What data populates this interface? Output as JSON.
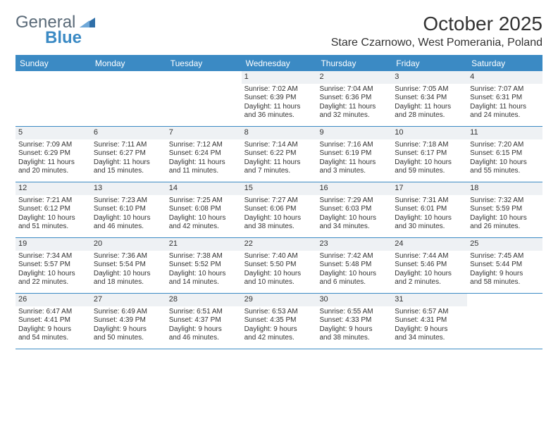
{
  "logo": {
    "text1": "General",
    "text2": "Blue",
    "tri_color": "#2f6fa8"
  },
  "title": "October 2025",
  "location": "Stare Czarnowo, West Pomerania, Poland",
  "header_bg": "#3b8ac4",
  "daybar_bg": "#eef1f4",
  "day_headers": [
    "Sunday",
    "Monday",
    "Tuesday",
    "Wednesday",
    "Thursday",
    "Friday",
    "Saturday"
  ],
  "weeks": [
    [
      {},
      {},
      {},
      {
        "n": "1",
        "sr": "Sunrise: 7:02 AM",
        "ss": "Sunset: 6:39 PM",
        "d1": "Daylight: 11 hours",
        "d2": "and 36 minutes."
      },
      {
        "n": "2",
        "sr": "Sunrise: 7:04 AM",
        "ss": "Sunset: 6:36 PM",
        "d1": "Daylight: 11 hours",
        "d2": "and 32 minutes."
      },
      {
        "n": "3",
        "sr": "Sunrise: 7:05 AM",
        "ss": "Sunset: 6:34 PM",
        "d1": "Daylight: 11 hours",
        "d2": "and 28 minutes."
      },
      {
        "n": "4",
        "sr": "Sunrise: 7:07 AM",
        "ss": "Sunset: 6:31 PM",
        "d1": "Daylight: 11 hours",
        "d2": "and 24 minutes."
      }
    ],
    [
      {
        "n": "5",
        "sr": "Sunrise: 7:09 AM",
        "ss": "Sunset: 6:29 PM",
        "d1": "Daylight: 11 hours",
        "d2": "and 20 minutes."
      },
      {
        "n": "6",
        "sr": "Sunrise: 7:11 AM",
        "ss": "Sunset: 6:27 PM",
        "d1": "Daylight: 11 hours",
        "d2": "and 15 minutes."
      },
      {
        "n": "7",
        "sr": "Sunrise: 7:12 AM",
        "ss": "Sunset: 6:24 PM",
        "d1": "Daylight: 11 hours",
        "d2": "and 11 minutes."
      },
      {
        "n": "8",
        "sr": "Sunrise: 7:14 AM",
        "ss": "Sunset: 6:22 PM",
        "d1": "Daylight: 11 hours",
        "d2": "and 7 minutes."
      },
      {
        "n": "9",
        "sr": "Sunrise: 7:16 AM",
        "ss": "Sunset: 6:19 PM",
        "d1": "Daylight: 11 hours",
        "d2": "and 3 minutes."
      },
      {
        "n": "10",
        "sr": "Sunrise: 7:18 AM",
        "ss": "Sunset: 6:17 PM",
        "d1": "Daylight: 10 hours",
        "d2": "and 59 minutes."
      },
      {
        "n": "11",
        "sr": "Sunrise: 7:20 AM",
        "ss": "Sunset: 6:15 PM",
        "d1": "Daylight: 10 hours",
        "d2": "and 55 minutes."
      }
    ],
    [
      {
        "n": "12",
        "sr": "Sunrise: 7:21 AM",
        "ss": "Sunset: 6:12 PM",
        "d1": "Daylight: 10 hours",
        "d2": "and 51 minutes."
      },
      {
        "n": "13",
        "sr": "Sunrise: 7:23 AM",
        "ss": "Sunset: 6:10 PM",
        "d1": "Daylight: 10 hours",
        "d2": "and 46 minutes."
      },
      {
        "n": "14",
        "sr": "Sunrise: 7:25 AM",
        "ss": "Sunset: 6:08 PM",
        "d1": "Daylight: 10 hours",
        "d2": "and 42 minutes."
      },
      {
        "n": "15",
        "sr": "Sunrise: 7:27 AM",
        "ss": "Sunset: 6:06 PM",
        "d1": "Daylight: 10 hours",
        "d2": "and 38 minutes."
      },
      {
        "n": "16",
        "sr": "Sunrise: 7:29 AM",
        "ss": "Sunset: 6:03 PM",
        "d1": "Daylight: 10 hours",
        "d2": "and 34 minutes."
      },
      {
        "n": "17",
        "sr": "Sunrise: 7:31 AM",
        "ss": "Sunset: 6:01 PM",
        "d1": "Daylight: 10 hours",
        "d2": "and 30 minutes."
      },
      {
        "n": "18",
        "sr": "Sunrise: 7:32 AM",
        "ss": "Sunset: 5:59 PM",
        "d1": "Daylight: 10 hours",
        "d2": "and 26 minutes."
      }
    ],
    [
      {
        "n": "19",
        "sr": "Sunrise: 7:34 AM",
        "ss": "Sunset: 5:57 PM",
        "d1": "Daylight: 10 hours",
        "d2": "and 22 minutes."
      },
      {
        "n": "20",
        "sr": "Sunrise: 7:36 AM",
        "ss": "Sunset: 5:54 PM",
        "d1": "Daylight: 10 hours",
        "d2": "and 18 minutes."
      },
      {
        "n": "21",
        "sr": "Sunrise: 7:38 AM",
        "ss": "Sunset: 5:52 PM",
        "d1": "Daylight: 10 hours",
        "d2": "and 14 minutes."
      },
      {
        "n": "22",
        "sr": "Sunrise: 7:40 AM",
        "ss": "Sunset: 5:50 PM",
        "d1": "Daylight: 10 hours",
        "d2": "and 10 minutes."
      },
      {
        "n": "23",
        "sr": "Sunrise: 7:42 AM",
        "ss": "Sunset: 5:48 PM",
        "d1": "Daylight: 10 hours",
        "d2": "and 6 minutes."
      },
      {
        "n": "24",
        "sr": "Sunrise: 7:44 AM",
        "ss": "Sunset: 5:46 PM",
        "d1": "Daylight: 10 hours",
        "d2": "and 2 minutes."
      },
      {
        "n": "25",
        "sr": "Sunrise: 7:45 AM",
        "ss": "Sunset: 5:44 PM",
        "d1": "Daylight: 9 hours",
        "d2": "and 58 minutes."
      }
    ],
    [
      {
        "n": "26",
        "sr": "Sunrise: 6:47 AM",
        "ss": "Sunset: 4:41 PM",
        "d1": "Daylight: 9 hours",
        "d2": "and 54 minutes."
      },
      {
        "n": "27",
        "sr": "Sunrise: 6:49 AM",
        "ss": "Sunset: 4:39 PM",
        "d1": "Daylight: 9 hours",
        "d2": "and 50 minutes."
      },
      {
        "n": "28",
        "sr": "Sunrise: 6:51 AM",
        "ss": "Sunset: 4:37 PM",
        "d1": "Daylight: 9 hours",
        "d2": "and 46 minutes."
      },
      {
        "n": "29",
        "sr": "Sunrise: 6:53 AM",
        "ss": "Sunset: 4:35 PM",
        "d1": "Daylight: 9 hours",
        "d2": "and 42 minutes."
      },
      {
        "n": "30",
        "sr": "Sunrise: 6:55 AM",
        "ss": "Sunset: 4:33 PM",
        "d1": "Daylight: 9 hours",
        "d2": "and 38 minutes."
      },
      {
        "n": "31",
        "sr": "Sunrise: 6:57 AM",
        "ss": "Sunset: 4:31 PM",
        "d1": "Daylight: 9 hours",
        "d2": "and 34 minutes."
      },
      {}
    ]
  ]
}
